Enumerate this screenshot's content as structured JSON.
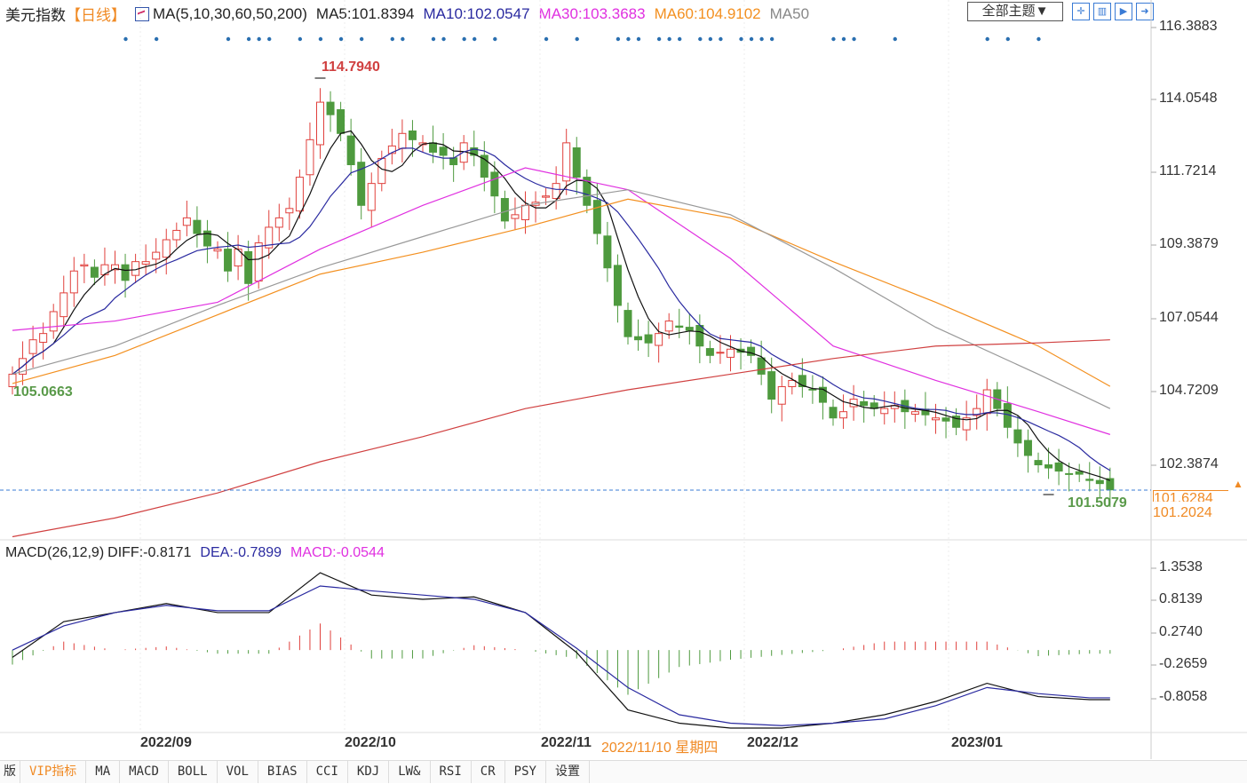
{
  "header": {
    "title": "美元指数",
    "period": "【日线】",
    "ma_params": "MA(5,10,30,60,50,200)",
    "ma5": "MA5:101.8394",
    "ma10": "MA10:102.0547",
    "ma30": "MA30:103.3683",
    "ma60": "MA60:104.9102",
    "ma50": "MA50"
  },
  "toolbar": {
    "theme": "全部主题▼",
    "icons": [
      "crosshair-icon",
      "bar-chart-icon",
      "play-chart-icon",
      "exit-icon"
    ]
  },
  "colors": {
    "up": "#e0403c",
    "down": "#4e9a3e",
    "ma5": "#111111",
    "ma10": "#2a2aa0",
    "ma30": "#e030e0",
    "ma60": "#f39020",
    "ma50": "#999999",
    "ma200": "#d04040",
    "diff": "#111111",
    "dea": "#2a2aa0"
  },
  "price_axis": [
    "116.3883",
    "114.0548",
    "111.7214",
    "109.3879",
    "107.0544",
    "104.7209",
    "102.3874"
  ],
  "price_marks": {
    "high": "114.7940",
    "low_start": "105.0663",
    "low_end": "101.5079",
    "current": "101.6284",
    "cross": "101.2024"
  },
  "macd": {
    "params": "MACD(26,12,9)",
    "diff": "DIFF:-0.8171",
    "dea": "DEA:-0.7899",
    "macd": "MACD:-0.0544",
    "axis": [
      "1.3538",
      "0.8139",
      "0.2740",
      "-0.2659",
      "-0.8058"
    ]
  },
  "dates": [
    "2022/09",
    "2022/10",
    "2022/11",
    "2022/12",
    "2023/01"
  ],
  "cross_date": "2022/11/10 星期四",
  "tabs": [
    "版",
    "VIP指标",
    "MA",
    "MACD",
    "BOLL",
    "VOL",
    "BIAS",
    "CCI",
    "KDJ",
    "LW&",
    "RSI",
    "CR",
    "PSY",
    "设置"
  ],
  "chart_data": {
    "type": "candlestick",
    "ylim": [
      99.8,
      116.3883
    ],
    "closes": [
      105.3,
      105.8,
      106.4,
      106.6,
      107.3,
      107.9,
      108.6,
      108.8,
      108.4,
      108.8,
      108.8,
      108.3,
      108.9,
      108.9,
      109.2,
      109.6,
      109.9,
      110.3,
      109.8,
      109.4,
      109.3,
      108.6,
      109.3,
      108.2,
      109.5,
      110.0,
      110.3,
      110.6,
      111.6,
      112.8,
      114.0,
      113.6,
      113.0,
      112.0,
      110.7,
      111.4,
      112.2,
      112.6,
      113.0,
      112.8,
      112.7,
      112.4,
      112.3,
      112.0,
      112.7,
      112.3,
      111.6,
      111.0,
      110.2,
      110.4,
      110.7,
      110.8,
      111.0,
      111.4,
      112.7,
      111.6,
      110.7,
      109.8,
      108.7,
      107.5,
      106.5,
      106.4,
      106.3,
      106.6,
      107.0,
      106.8,
      106.7,
      106.2,
      105.9,
      106.0,
      106.1,
      106.0,
      105.9,
      105.3,
      104.5,
      104.9,
      105.1,
      104.9,
      104.8,
      104.4,
      103.9,
      104.1,
      104.5,
      104.3,
      104.2,
      104.2,
      104.3,
      104.1,
      104.1,
      104.0,
      103.9,
      103.8,
      103.6,
      103.9,
      104.2,
      104.8,
      104.2,
      103.6,
      103.1,
      102.7,
      102.4,
      102.3,
      102.2,
      102.1,
      102.1,
      101.9,
      101.8,
      101.6
    ],
    "ma_sampled_indices": [
      0,
      10,
      20,
      30,
      40,
      50,
      60,
      70,
      80,
      90,
      100,
      107
    ],
    "ma30": [
      106.7,
      107.0,
      107.6,
      109.3,
      110.7,
      111.9,
      111.2,
      109.0,
      106.2,
      105.1,
      104.1,
      103.37
    ],
    "ma60": [
      105.0,
      105.9,
      107.2,
      108.5,
      109.2,
      110.0,
      110.9,
      110.3,
      108.9,
      107.6,
      106.2,
      104.91
    ],
    "ma50": [
      105.3,
      106.2,
      107.5,
      108.7,
      109.7,
      110.7,
      111.2,
      110.4,
      108.7,
      106.8,
      105.3,
      104.2
    ],
    "ma200": [
      100.1,
      100.7,
      101.5,
      102.5,
      103.3,
      104.2,
      104.8,
      105.3,
      105.8,
      106.2,
      106.3,
      106.4
    ],
    "macd_sampled_indices": [
      0,
      5,
      10,
      15,
      20,
      25,
      30,
      35,
      40,
      45,
      50,
      55,
      60,
      65,
      70,
      75,
      80,
      85,
      90,
      95,
      100,
      105,
      107
    ],
    "diff": [
      -0.12,
      0.47,
      0.62,
      0.77,
      0.62,
      0.62,
      1.28,
      0.91,
      0.84,
      0.88,
      0.62,
      -0.04,
      -0.99,
      -1.21,
      -1.29,
      -1.29,
      -1.21,
      -1.07,
      -0.85,
      -0.55,
      -0.77,
      -0.82,
      -0.82
    ],
    "dea": [
      0.0,
      0.4,
      0.62,
      0.74,
      0.65,
      0.65,
      1.06,
      0.98,
      0.91,
      0.84,
      0.62,
      0.03,
      -0.62,
      -1.07,
      -1.21,
      -1.25,
      -1.21,
      -1.14,
      -0.92,
      -0.62,
      -0.72,
      -0.79,
      -0.79
    ],
    "macd_ylim": [
      -1.35,
      1.6
    ]
  }
}
